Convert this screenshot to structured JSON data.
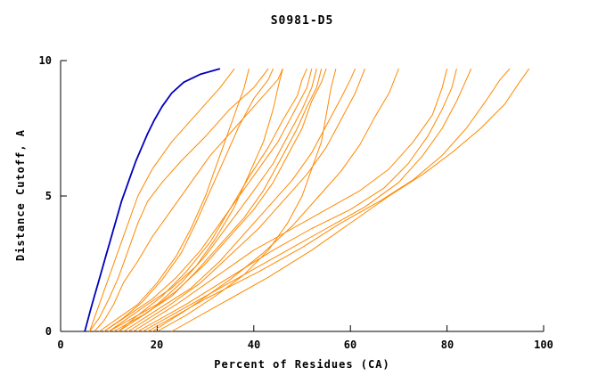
{
  "title": "S0981-D5",
  "chart_data": {
    "type": "line",
    "title": "S0981-D5",
    "xlabel": "Percent of Residues (CA)",
    "ylabel": "Distance Cutoff, A",
    "xlim": [
      0,
      100
    ],
    "ylim": [
      0,
      10
    ],
    "x_ticks": [
      0,
      20,
      40,
      60,
      80,
      100
    ],
    "y_ticks": [
      0,
      5,
      10
    ],
    "grid": false,
    "legend": "none",
    "colors": {
      "highlight_model": "#0000bb",
      "other_models": "#ff8800"
    },
    "series": [
      {
        "name": "highlighted-model",
        "color": "#0000bb",
        "width": 1.8,
        "points": [
          [
            5,
            0
          ],
          [
            5.6,
            0.4
          ],
          [
            6.2,
            0.8
          ],
          [
            7,
            1.3
          ],
          [
            7.8,
            1.8
          ],
          [
            8.6,
            2.3
          ],
          [
            9.4,
            2.8
          ],
          [
            10.2,
            3.3
          ],
          [
            11,
            3.8
          ],
          [
            11.8,
            4.3
          ],
          [
            12.6,
            4.8
          ],
          [
            13.6,
            5.3
          ],
          [
            14.6,
            5.8
          ],
          [
            15.6,
            6.3
          ],
          [
            16.8,
            6.8
          ],
          [
            18,
            7.3
          ],
          [
            19.4,
            7.8
          ],
          [
            21,
            8.3
          ],
          [
            23,
            8.8
          ],
          [
            25.5,
            9.2
          ],
          [
            29,
            9.5
          ],
          [
            33,
            9.7
          ]
        ]
      },
      {
        "name": "model-01",
        "color": "#ff8800",
        "width": 1,
        "points": [
          [
            6,
            0
          ],
          [
            7,
            0.5
          ],
          [
            8,
            1
          ],
          [
            9,
            1.5
          ],
          [
            10,
            2
          ],
          [
            11,
            2.5
          ],
          [
            12,
            3
          ],
          [
            14,
            4
          ],
          [
            16,
            5
          ],
          [
            19,
            6
          ],
          [
            23,
            7
          ],
          [
            28,
            8
          ],
          [
            33,
            9
          ],
          [
            36,
            9.7
          ]
        ]
      },
      {
        "name": "model-02",
        "color": "#ff8800",
        "width": 1,
        "points": [
          [
            6,
            0
          ],
          [
            8,
            0.5
          ],
          [
            10,
            1.2
          ],
          [
            12,
            2
          ],
          [
            14,
            3
          ],
          [
            16,
            4
          ],
          [
            18,
            4.8
          ],
          [
            21,
            5.5
          ],
          [
            25,
            6.3
          ],
          [
            30,
            7.2
          ],
          [
            35,
            8.2
          ],
          [
            40,
            9
          ],
          [
            43,
            9.7
          ]
        ]
      },
      {
        "name": "model-03",
        "color": "#ff8800",
        "width": 1,
        "points": [
          [
            7,
            0
          ],
          [
            9,
            0.4
          ],
          [
            11,
            1
          ],
          [
            13,
            1.8
          ],
          [
            16,
            2.6
          ],
          [
            19,
            3.5
          ],
          [
            23,
            4.5
          ],
          [
            27,
            5.5
          ],
          [
            31,
            6.5
          ],
          [
            36,
            7.5
          ],
          [
            41,
            8.5
          ],
          [
            45,
            9.3
          ],
          [
            46,
            9.7
          ]
        ]
      },
      {
        "name": "model-04",
        "color": "#ff8800",
        "width": 1,
        "points": [
          [
            8,
            0
          ],
          [
            12,
            0.5
          ],
          [
            16,
            1
          ],
          [
            20,
            1.8
          ],
          [
            24,
            2.8
          ],
          [
            27,
            3.8
          ],
          [
            30,
            5
          ],
          [
            32,
            6
          ],
          [
            34,
            7
          ],
          [
            36,
            8
          ],
          [
            38,
            9
          ],
          [
            39,
            9.7
          ]
        ]
      },
      {
        "name": "model-05",
        "color": "#ff8800",
        "width": 1,
        "points": [
          [
            9,
            0
          ],
          [
            14,
            0.6
          ],
          [
            19,
            1.2
          ],
          [
            24,
            2
          ],
          [
            29,
            3
          ],
          [
            33,
            4
          ],
          [
            37,
            5
          ],
          [
            41,
            6
          ],
          [
            45,
            7
          ],
          [
            48,
            8
          ],
          [
            51,
            9
          ],
          [
            52,
            9.7
          ]
        ]
      },
      {
        "name": "model-06",
        "color": "#ff8800",
        "width": 1,
        "points": [
          [
            10,
            0
          ],
          [
            15,
            0.5
          ],
          [
            20,
            1
          ],
          [
            25,
            1.8
          ],
          [
            30,
            2.8
          ],
          [
            35,
            4
          ],
          [
            40,
            5.2
          ],
          [
            44,
            6.2
          ],
          [
            47,
            7.2
          ],
          [
            50,
            8.2
          ],
          [
            52,
            9
          ],
          [
            53,
            9.7
          ]
        ]
      },
      {
        "name": "model-07",
        "color": "#ff8800",
        "width": 1,
        "points": [
          [
            11,
            0
          ],
          [
            17,
            0.6
          ],
          [
            23,
            1.3
          ],
          [
            28,
            2.2
          ],
          [
            33,
            3.2
          ],
          [
            38,
            4.2
          ],
          [
            42,
            5.2
          ],
          [
            46,
            6.5
          ],
          [
            49,
            7.5
          ],
          [
            51,
            8.3
          ],
          [
            53,
            9
          ],
          [
            54,
            9.7
          ]
        ]
      },
      {
        "name": "model-08",
        "color": "#ff8800",
        "width": 1,
        "points": [
          [
            12,
            0
          ],
          [
            18,
            0.7
          ],
          [
            24,
            1.5
          ],
          [
            30,
            2.5
          ],
          [
            35,
            3.5
          ],
          [
            40,
            4.5
          ],
          [
            44,
            5.5
          ],
          [
            47,
            6.5
          ],
          [
            50,
            7.5
          ],
          [
            52,
            8.5
          ],
          [
            54,
            9.2
          ],
          [
            55,
            9.7
          ]
        ]
      },
      {
        "name": "model-09",
        "color": "#ff8800",
        "width": 1,
        "points": [
          [
            13,
            0
          ],
          [
            20,
            0.8
          ],
          [
            27,
            1.6
          ],
          [
            33,
            2.6
          ],
          [
            38,
            3.6
          ],
          [
            43,
            4.6
          ],
          [
            48,
            5.6
          ],
          [
            52,
            6.6
          ],
          [
            55,
            7.6
          ],
          [
            58,
            8.6
          ],
          [
            60,
            9.3
          ],
          [
            61,
            9.7
          ]
        ]
      },
      {
        "name": "model-10",
        "color": "#ff8800",
        "width": 1,
        "points": [
          [
            14,
            0
          ],
          [
            22,
            0.9
          ],
          [
            29,
            1.8
          ],
          [
            35,
            2.8
          ],
          [
            41,
            3.8
          ],
          [
            46,
            4.8
          ],
          [
            51,
            5.8
          ],
          [
            55,
            6.8
          ],
          [
            58,
            7.8
          ],
          [
            61,
            8.8
          ],
          [
            63,
            9.7
          ]
        ]
      },
      {
        "name": "model-11",
        "color": "#ff8800",
        "width": 1,
        "points": [
          [
            15,
            0
          ],
          [
            24,
            1
          ],
          [
            32,
            2
          ],
          [
            40,
            3
          ],
          [
            48,
            3.8
          ],
          [
            55,
            4.5
          ],
          [
            62,
            5.2
          ],
          [
            68,
            6
          ],
          [
            73,
            7
          ],
          [
            77,
            8
          ],
          [
            79,
            9
          ],
          [
            80,
            9.7
          ]
        ]
      },
      {
        "name": "model-12",
        "color": "#ff8800",
        "width": 1,
        "points": [
          [
            16,
            0
          ],
          [
            26,
            1
          ],
          [
            35,
            2
          ],
          [
            44,
            3
          ],
          [
            52,
            3.8
          ],
          [
            60,
            4.5
          ],
          [
            67,
            5.3
          ],
          [
            72,
            6.2
          ],
          [
            76,
            7.2
          ],
          [
            79,
            8.2
          ],
          [
            81,
            9
          ],
          [
            82,
            9.7
          ]
        ]
      },
      {
        "name": "model-13",
        "color": "#ff8800",
        "width": 1,
        "points": [
          [
            17,
            0
          ],
          [
            28,
            1.1
          ],
          [
            38,
            2.1
          ],
          [
            47,
            3
          ],
          [
            55,
            3.8
          ],
          [
            63,
            4.6
          ],
          [
            70,
            5.5
          ],
          [
            75,
            6.5
          ],
          [
            79,
            7.5
          ],
          [
            82,
            8.5
          ],
          [
            84,
            9.3
          ],
          [
            85,
            9.7
          ]
        ]
      },
      {
        "name": "model-14",
        "color": "#ff8800",
        "width": 1,
        "points": [
          [
            18,
            0
          ],
          [
            30,
            1.2
          ],
          [
            41,
            2.2
          ],
          [
            50,
            3.1
          ],
          [
            58,
            4
          ],
          [
            66,
            4.8
          ],
          [
            73,
            5.6
          ],
          [
            79,
            6.5
          ],
          [
            84,
            7.5
          ],
          [
            88,
            8.5
          ],
          [
            91,
            9.3
          ],
          [
            93,
            9.7
          ]
        ]
      },
      {
        "name": "model-15",
        "color": "#ff8800",
        "width": 1,
        "points": [
          [
            23,
            0
          ],
          [
            33,
            1
          ],
          [
            43,
            2
          ],
          [
            52,
            3
          ],
          [
            60,
            4
          ],
          [
            68,
            5
          ],
          [
            75,
            5.8
          ],
          [
            81,
            6.6
          ],
          [
            87,
            7.5
          ],
          [
            92,
            8.4
          ],
          [
            95,
            9.2
          ],
          [
            97,
            9.7
          ]
        ]
      },
      {
        "name": "model-16",
        "color": "#ff8800",
        "width": 1,
        "points": [
          [
            10,
            0
          ],
          [
            14,
            0.5
          ],
          [
            18,
            1
          ],
          [
            23,
            1.6
          ],
          [
            28,
            2.4
          ],
          [
            32,
            3.4
          ],
          [
            36,
            4.6
          ],
          [
            39,
            5.8
          ],
          [
            42,
            7
          ],
          [
            44,
            8.2
          ],
          [
            45,
            9
          ],
          [
            46,
            9.7
          ]
        ]
      },
      {
        "name": "model-17",
        "color": "#ff8800",
        "width": 1,
        "points": [
          [
            9,
            0
          ],
          [
            13,
            0.5
          ],
          [
            17,
            1.1
          ],
          [
            21,
            1.9
          ],
          [
            25,
            2.9
          ],
          [
            28,
            4
          ],
          [
            31,
            5.2
          ],
          [
            34,
            6.4
          ],
          [
            37,
            7.6
          ],
          [
            40,
            8.6
          ],
          [
            43,
            9.3
          ],
          [
            44,
            9.7
          ]
        ]
      },
      {
        "name": "model-18",
        "color": "#ff8800",
        "width": 1,
        "points": [
          [
            12,
            0
          ],
          [
            16,
            0.6
          ],
          [
            21,
            1.3
          ],
          [
            26,
            2.2
          ],
          [
            31,
            3.3
          ],
          [
            35,
            4.5
          ],
          [
            39,
            5.7
          ],
          [
            43,
            6.8
          ],
          [
            46,
            7.8
          ],
          [
            49,
            8.7
          ],
          [
            50,
            9.3
          ],
          [
            51,
            9.7
          ]
        ]
      },
      {
        "name": "model-19",
        "color": "#ff8800",
        "width": 1,
        "points": [
          [
            20,
            0
          ],
          [
            26,
            0.6
          ],
          [
            32,
            1.3
          ],
          [
            38,
            2.1
          ],
          [
            43,
            3
          ],
          [
            47,
            4
          ],
          [
            50,
            5
          ],
          [
            52,
            6
          ],
          [
            54,
            7
          ],
          [
            55,
            8
          ],
          [
            56,
            9
          ],
          [
            57,
            9.7
          ]
        ]
      },
      {
        "name": "model-20",
        "color": "#ff8800",
        "width": 1,
        "points": [
          [
            19,
            0
          ],
          [
            27,
            0.9
          ],
          [
            35,
            1.9
          ],
          [
            42,
            2.9
          ],
          [
            48,
            3.9
          ],
          [
            53,
            4.9
          ],
          [
            58,
            5.9
          ],
          [
            62,
            6.9
          ],
          [
            65,
            7.9
          ],
          [
            68,
            8.8
          ],
          [
            70,
            9.7
          ]
        ]
      }
    ]
  }
}
